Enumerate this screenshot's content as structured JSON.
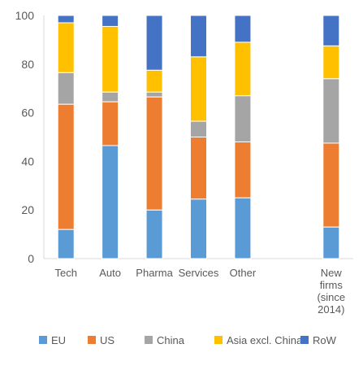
{
  "chart_data": {
    "type": "bar",
    "stacked": true,
    "title": "",
    "xlabel": "",
    "ylabel": "",
    "ylim": [
      0,
      100
    ],
    "yticks": [
      0,
      20,
      40,
      60,
      80,
      100
    ],
    "grid": false,
    "legend_position": "bottom",
    "categories": [
      [
        "Tech"
      ],
      [
        "Auto"
      ],
      [
        "Pharma"
      ],
      [
        "Services"
      ],
      [
        "Other"
      ],
      [
        ""
      ],
      [
        "New",
        "firms",
        "(since",
        "2014)"
      ]
    ],
    "series": [
      {
        "name": "EU",
        "color": "#5B9BD5",
        "values": [
          12,
          46.5,
          20,
          24.5,
          25,
          null,
          13
        ]
      },
      {
        "name": "US",
        "color": "#ED7D31",
        "values": [
          51.5,
          18,
          46.5,
          25.5,
          23,
          null,
          34.5
        ]
      },
      {
        "name": "China",
        "color": "#A5A5A5",
        "values": [
          13,
          4,
          2,
          6.5,
          19,
          null,
          26.5
        ]
      },
      {
        "name": "Asia excl. China",
        "color": "#FFC000",
        "values": [
          20.5,
          27,
          9,
          26.5,
          22,
          null,
          13.5
        ]
      },
      {
        "name": "RoW",
        "color": "#4472C4",
        "values": [
          3,
          4.5,
          22.5,
          17,
          11,
          null,
          12.5
        ]
      }
    ]
  }
}
